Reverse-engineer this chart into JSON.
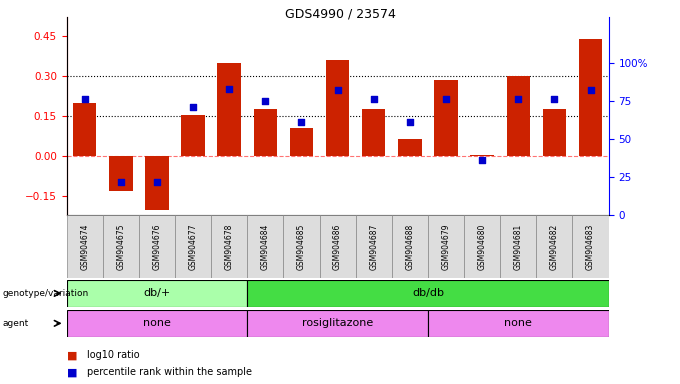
{
  "title": "GDS4990 / 23574",
  "samples": [
    "GSM904674",
    "GSM904675",
    "GSM904676",
    "GSM904677",
    "GSM904678",
    "GSM904684",
    "GSM904685",
    "GSM904686",
    "GSM904687",
    "GSM904688",
    "GSM904679",
    "GSM904680",
    "GSM904681",
    "GSM904682",
    "GSM904683"
  ],
  "log10_ratio": [
    0.2,
    -0.13,
    -0.2,
    0.155,
    0.35,
    0.175,
    0.105,
    0.36,
    0.175,
    0.065,
    0.285,
    0.005,
    0.3,
    0.175,
    0.44
  ],
  "percentile_pct": [
    76,
    22,
    22,
    71,
    83,
    75,
    61,
    82,
    76,
    61,
    76,
    36,
    76,
    76,
    82
  ],
  "bar_color": "#cc2200",
  "dot_color": "#0000cc",
  "background_color": "#ffffff",
  "title_color": "#000000",
  "ylim_left": [
    -0.22,
    0.52
  ],
  "ylim_right": [
    0,
    130
  ],
  "yticks_left": [
    -0.15,
    0.0,
    0.15,
    0.3,
    0.45
  ],
  "yticks_right": [
    0,
    25,
    50,
    75,
    100
  ],
  "hline_values": [
    0.15,
    0.3
  ],
  "zero_line": 0.0,
  "genotype_groups": [
    {
      "label": "db/+",
      "start": 0,
      "end": 5,
      "color": "#aaffaa"
    },
    {
      "label": "db/db",
      "start": 5,
      "end": 15,
      "color": "#44dd44"
    }
  ],
  "agent_groups": [
    {
      "label": "none",
      "start": 0,
      "end": 5
    },
    {
      "label": "rosiglitazone",
      "start": 5,
      "end": 10
    },
    {
      "label": "none",
      "start": 10,
      "end": 15
    }
  ],
  "agent_color": "#ee88ee",
  "legend_bar_label": "log10 ratio",
  "legend_dot_label": "percentile rank within the sample"
}
